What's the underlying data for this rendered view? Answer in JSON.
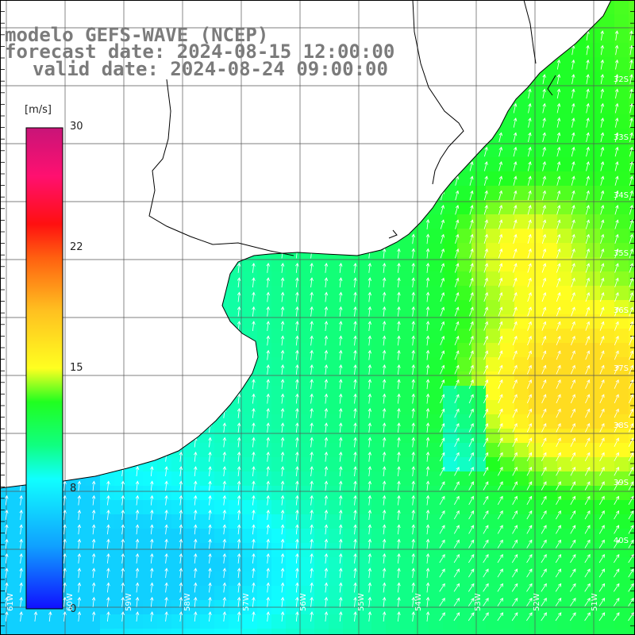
{
  "title": {
    "model": "modelo GEFS-WAVE (NCEP)",
    "forecast": "forecast date: 2024-08-15 12:00:00",
    "valid": "valid date: 2024-08-24 09:00:00"
  },
  "colorbar": {
    "unit": "[m/s]",
    "min": 0,
    "max": 30,
    "ticks": [
      "30",
      "22",
      "15",
      "8",
      "0"
    ],
    "tick_values": [
      30,
      22,
      15,
      8,
      0
    ],
    "colors": [
      "#1010ff",
      "#10a0ff",
      "#10ffff",
      "#10ff80",
      "#20ff20",
      "#a0ff20",
      "#ffff20",
      "#ffa020",
      "#ff2010",
      "#ff1080",
      "#c81478"
    ]
  },
  "map": {
    "lat_labels": [
      "32S",
      "33S",
      "34S",
      "35S",
      "36S",
      "37S",
      "38S",
      "39S",
      "40S"
    ],
    "lon_labels": [
      "61W",
      "60W",
      "59W",
      "58W",
      "57W",
      "56W",
      "55W",
      "54W",
      "53W",
      "52W",
      "51W"
    ],
    "colors": {
      "land": "#ffffff",
      "coast": "#000000",
      "grid": "#555555",
      "arrows": "#ffffff"
    }
  }
}
